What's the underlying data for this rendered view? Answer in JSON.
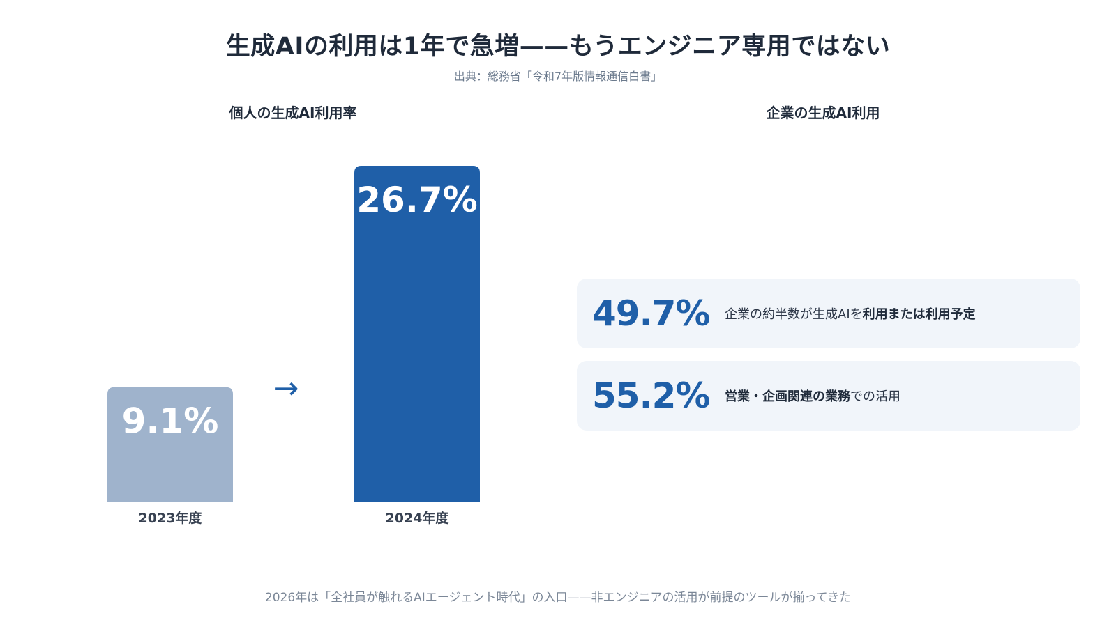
{
  "title": "生成AIの利用は1年で急増——もうエンジニア専用ではない",
  "subtitle": "出典：総務省「令和7年版情報通信白書」",
  "left_section_title": "個人の生成AI利用率",
  "right_section_title": "企業の生成AI利用",
  "arrow_glyph": "→",
  "colors": {
    "bar_2023": "#9fb3cc",
    "bar_2024": "#1f5fa8",
    "card_bg": "#f1f5fa",
    "accent": "#1f5fa8",
    "arrow": "#1f5fa8"
  },
  "chart_data": {
    "type": "bar",
    "categories": [
      "2023年度",
      "2024年度"
    ],
    "values": [
      9.1,
      26.7
    ],
    "value_labels": [
      "9.1%",
      "26.7%"
    ],
    "ylim": [
      0,
      26.7
    ],
    "title": "個人の生成AI利用率",
    "xlabel": "",
    "ylabel": "",
    "grid": false,
    "legend": "none"
  },
  "stats": [
    {
      "value": "49.7%",
      "desc_plain": "企業の約半数が生成AIを",
      "desc_bold": "利用または利用予定",
      "desc_tail": ""
    },
    {
      "value": "55.2%",
      "desc_plain": "",
      "desc_bold": "営業・企画関連の業務",
      "desc_tail": "での活用"
    }
  ],
  "footer": "2026年は「全社員が触れるAIエージェント時代」の入口——非エンジニアの活用が前提のツールが揃ってきた"
}
